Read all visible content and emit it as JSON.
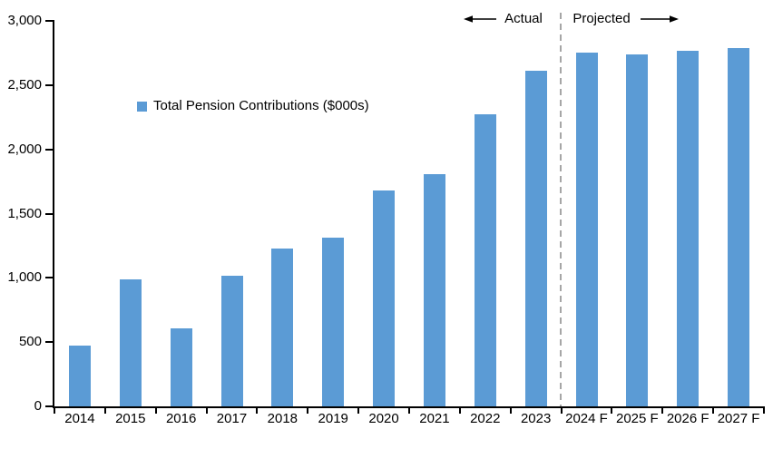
{
  "header": {
    "actual_label": "Actual",
    "projected_label": "Projected"
  },
  "legend": {
    "label": "Total Pension Contributions ($000s)"
  },
  "colors": {
    "bar": "#5B9BD5",
    "divider": "#A6A6A6",
    "axis": "#000000",
    "text": "#000000"
  },
  "chart_data": {
    "type": "bar",
    "title": "",
    "categories": [
      "2014",
      "2015",
      "2016",
      "2017",
      "2018",
      "2019",
      "2020",
      "2021",
      "2022",
      "2023",
      "2024 F",
      "2025 F",
      "2026 F",
      "2027 F"
    ],
    "series": [
      {
        "name": "Total Pension Contributions ($000s)",
        "values": [
          470,
          990,
          610,
          1020,
          1230,
          1310,
          1680,
          1810,
          2270,
          2610,
          2750,
          2740,
          2770,
          2790
        ]
      }
    ],
    "xlabel": "",
    "ylabel": "",
    "ylim": [
      0,
      3000
    ],
    "ytick_interval": 500,
    "ytick_labels": [
      "0",
      "500",
      "1,000",
      "1,500",
      "2,000",
      "2,500",
      "3,000"
    ],
    "grid": false,
    "legend_position": "inside-upper-left",
    "annotations": {
      "actual_section": "Actual",
      "projected_section": "Projected",
      "divider_between": [
        "2023",
        "2024 F"
      ]
    }
  }
}
